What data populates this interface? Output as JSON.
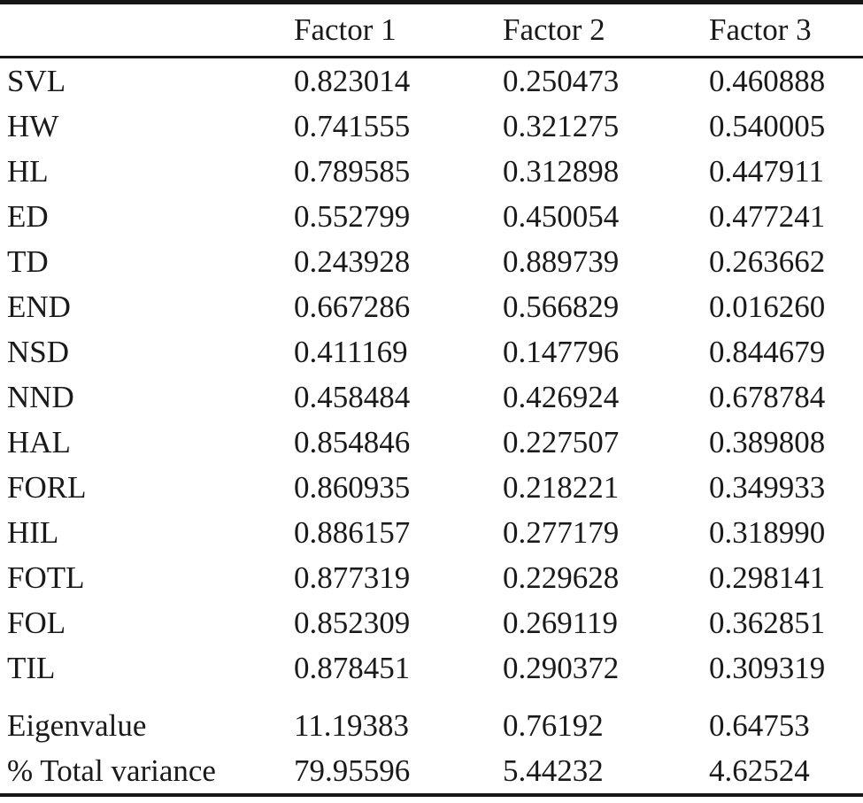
{
  "table": {
    "columns": [
      "",
      "Factor 1",
      "Factor 2",
      "Factor 3"
    ],
    "rows": [
      {
        "label": "SVL",
        "values": [
          "0.823014",
          "0.250473",
          "0.460888"
        ]
      },
      {
        "label": "HW",
        "values": [
          "0.741555",
          "0.321275",
          "0.540005"
        ]
      },
      {
        "label": "HL",
        "values": [
          "0.789585",
          "0.312898",
          "0.447911"
        ]
      },
      {
        "label": "ED",
        "values": [
          "0.552799",
          "0.450054",
          "0.477241"
        ]
      },
      {
        "label": "TD",
        "values": [
          "0.243928",
          "0.889739",
          "0.263662"
        ]
      },
      {
        "label": "END",
        "values": [
          "0.667286",
          "0.566829",
          "0.016260"
        ]
      },
      {
        "label": "NSD",
        "values": [
          "0.411169",
          "0.147796",
          "0.844679"
        ]
      },
      {
        "label": "NND",
        "values": [
          "0.458484",
          "0.426924",
          "0.678784"
        ]
      },
      {
        "label": "HAL",
        "values": [
          "0.854846",
          "0.227507",
          "0.389808"
        ]
      },
      {
        "label": "FORL",
        "values": [
          "0.860935",
          "0.218221",
          "0.349933"
        ]
      },
      {
        "label": "HIL",
        "values": [
          "0.886157",
          "0.277179",
          "0.318990"
        ]
      },
      {
        "label": "FOTL",
        "values": [
          "0.877319",
          "0.229628",
          "0.298141"
        ]
      },
      {
        "label": "FOL",
        "values": [
          "0.852309",
          "0.269119",
          "0.362851"
        ]
      },
      {
        "label": "TIL",
        "values": [
          "0.878451",
          "0.290372",
          "0.309319"
        ]
      }
    ],
    "summary_rows": [
      {
        "label": "Eigenvalue",
        "values": [
          "11.19383",
          "0.76192",
          "0.64753"
        ]
      },
      {
        "label": "% Total variance",
        "values": [
          "79.95596",
          "5.44232",
          "4.62524"
        ]
      }
    ]
  },
  "colors": {
    "text": "#1a1a1a",
    "rule": "#161616",
    "background": "#ffffff"
  }
}
